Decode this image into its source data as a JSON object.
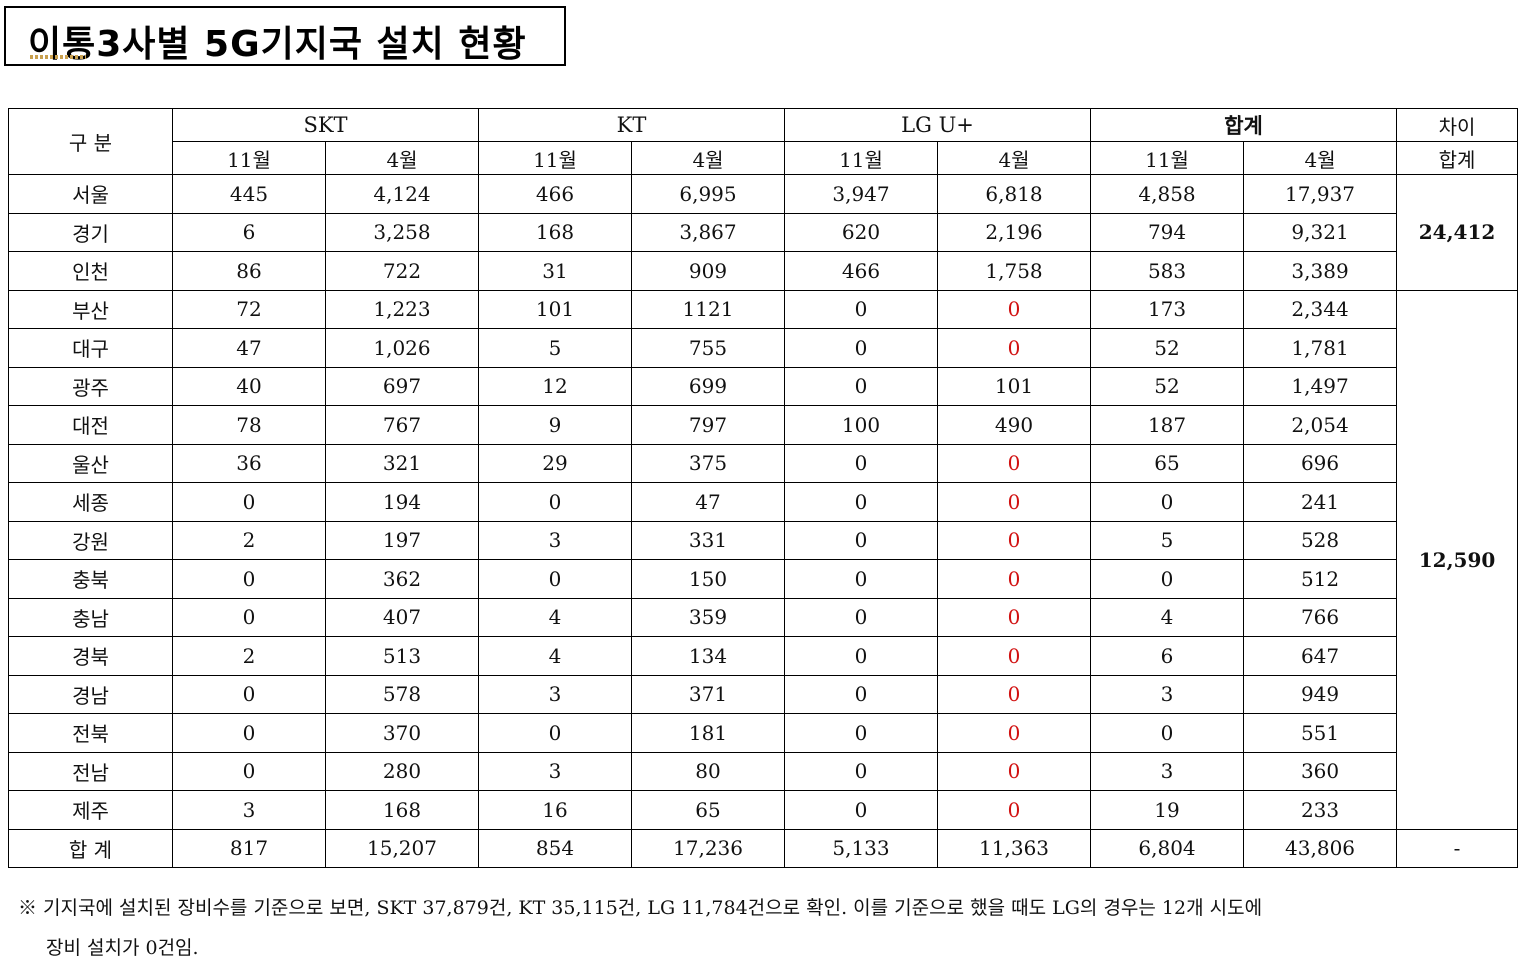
{
  "title": "이통3사별 5G기지국 설치 현황",
  "header": {
    "category": "구 분",
    "operators": [
      "SKT",
      "KT",
      "LG U+",
      "합계"
    ],
    "diff_line1": "차이",
    "diff_line2": "합계",
    "months": [
      "11월",
      "4월",
      "11월",
      "4월",
      "11월",
      "4월",
      "11월",
      "4월"
    ]
  },
  "rows": [
    {
      "region": "서울",
      "v": [
        "445",
        "4,124",
        "466",
        "6,995",
        "3,947",
        "6,818",
        "4,858",
        "17,937"
      ]
    },
    {
      "region": "경기",
      "v": [
        "6",
        "3,258",
        "168",
        "3,867",
        "620",
        "2,196",
        "794",
        "9,321"
      ]
    },
    {
      "region": "인천",
      "v": [
        "86",
        "722",
        "31",
        "909",
        "466",
        "1,758",
        "583",
        "3,389"
      ]
    },
    {
      "region": "부산",
      "v": [
        "72",
        "1,223",
        "101",
        "1121",
        "0",
        "0",
        "173",
        "2,344"
      ]
    },
    {
      "region": "대구",
      "v": [
        "47",
        "1,026",
        "5",
        "755",
        "0",
        "0",
        "52",
        "1,781"
      ]
    },
    {
      "region": "광주",
      "v": [
        "40",
        "697",
        "12",
        "699",
        "0",
        "101",
        "52",
        "1,497"
      ]
    },
    {
      "region": "대전",
      "v": [
        "78",
        "767",
        "9",
        "797",
        "100",
        "490",
        "187",
        "2,054"
      ]
    },
    {
      "region": "울산",
      "v": [
        "36",
        "321",
        "29",
        "375",
        "0",
        "0",
        "65",
        "696"
      ]
    },
    {
      "region": "세종",
      "v": [
        "0",
        "194",
        "0",
        "47",
        "0",
        "0",
        "0",
        "241"
      ]
    },
    {
      "region": "강원",
      "v": [
        "2",
        "197",
        "3",
        "331",
        "0",
        "0",
        "5",
        "528"
      ]
    },
    {
      "region": "충북",
      "v": [
        "0",
        "362",
        "0",
        "150",
        "0",
        "0",
        "0",
        "512"
      ]
    },
    {
      "region": "충남",
      "v": [
        "0",
        "407",
        "4",
        "359",
        "0",
        "0",
        "4",
        "766"
      ]
    },
    {
      "region": "경북",
      "v": [
        "2",
        "513",
        "4",
        "134",
        "0",
        "0",
        "6",
        "647"
      ]
    },
    {
      "region": "경남",
      "v": [
        "0",
        "578",
        "3",
        "371",
        "0",
        "0",
        "3",
        "949"
      ]
    },
    {
      "region": "전북",
      "v": [
        "0",
        "370",
        "0",
        "181",
        "0",
        "0",
        "0",
        "551"
      ]
    },
    {
      "region": "전남",
      "v": [
        "0",
        "280",
        "3",
        "80",
        "0",
        "0",
        "3",
        "360"
      ]
    },
    {
      "region": "제주",
      "v": [
        "3",
        "168",
        "16",
        "65",
        "0",
        "0",
        "19",
        "233"
      ]
    }
  ],
  "diff_groups": [
    "24,412",
    "12,590"
  ],
  "total_row": {
    "label": "합 계",
    "v": [
      "817",
      "15,207",
      "854",
      "17,236",
      "5,133",
      "11,363",
      "6,804",
      "43,806"
    ],
    "diff": "-"
  },
  "highlight_color": "#d11111",
  "note_line1": "※ 기지국에 설치된 장비수를 기준으로 보면, SKT  37,879건, KT 35,115건, LG 11,784건으로 확인. 이를 기준으로 했을 때도 LG의 경우는 12개 시도에",
  "note_line2": "장비 설치가 0건임."
}
